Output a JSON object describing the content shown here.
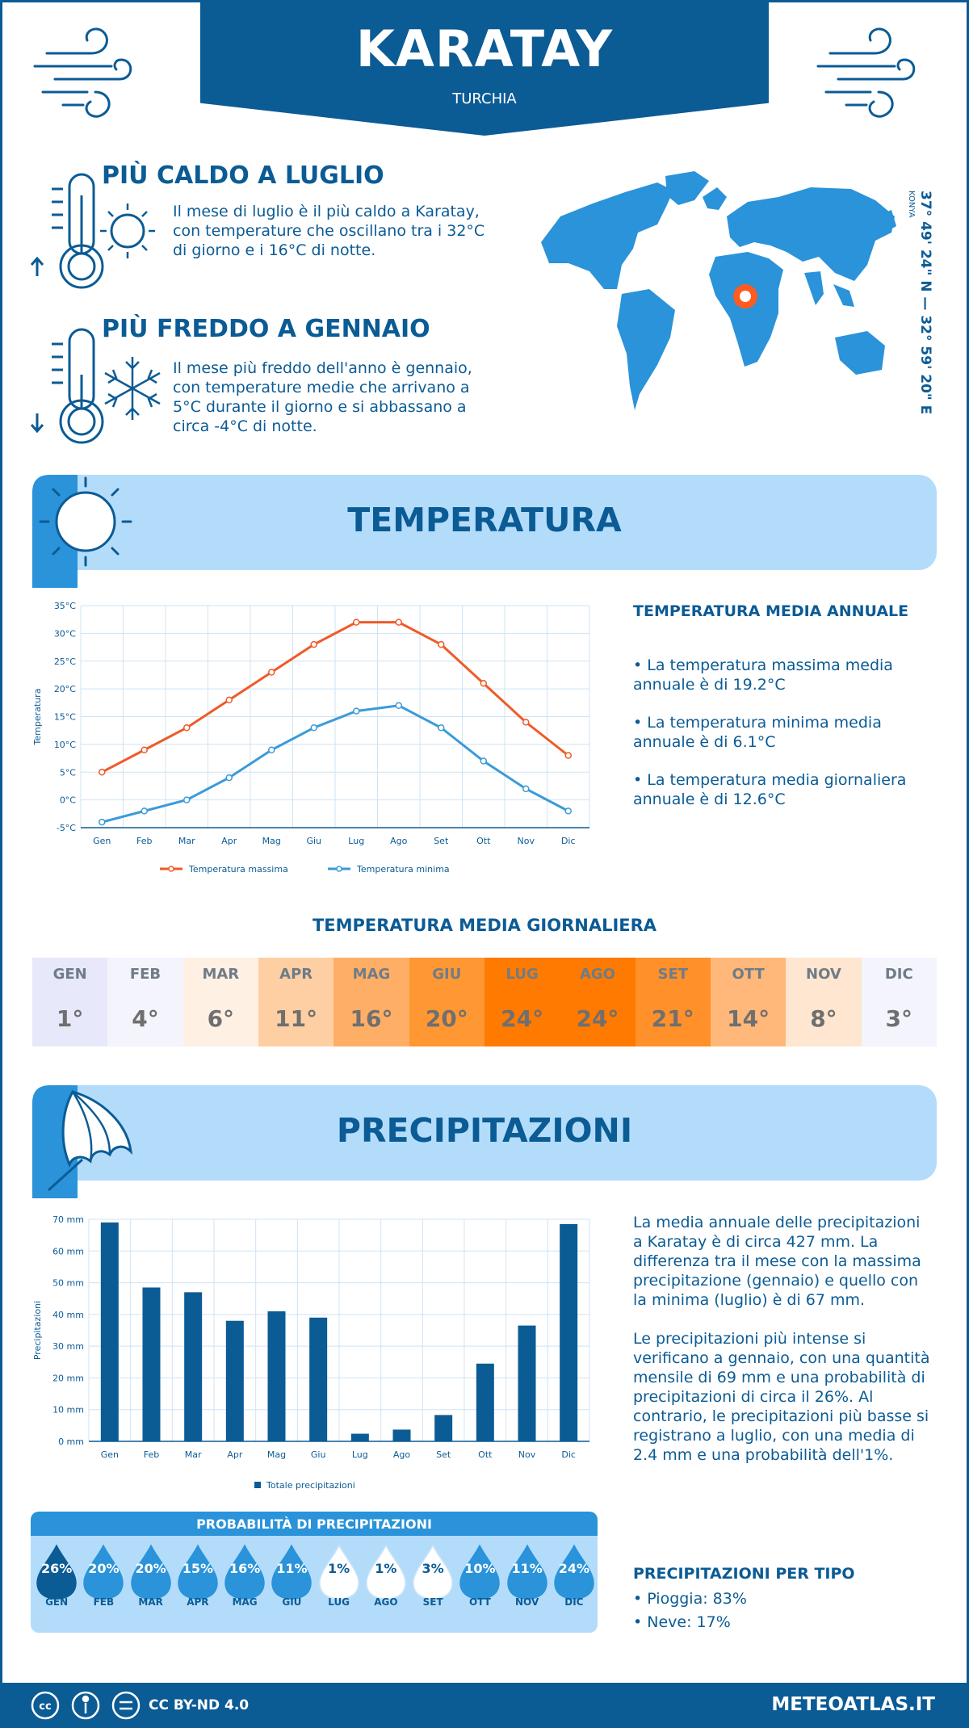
{
  "header": {
    "city": "KARATAY",
    "country": "TURCHIA"
  },
  "hot": {
    "title": "PIÙ CALDO A LUGLIO",
    "text": "Il mese di luglio è il più caldo a Karatay, con temperature che oscillano tra i 32°C di giorno e i 16°C di notte."
  },
  "cold": {
    "title": "PIÙ FREDDO A GENNAIO",
    "text": "Il mese più freddo dell'anno è gennaio, con temperature medie che arrivano a 5°C durante il giorno e si abbassano a circa -4°C di notte."
  },
  "coords": {
    "text": "37° 49' 24\" N — 32° 59' 20\" E",
    "region": "KONYA"
  },
  "temp_section": {
    "title": "TEMPERATURA",
    "annual_title": "TEMPERATURA MEDIA ANNUALE",
    "bullets": [
      "• La temperatura massima media annuale è di 19.2°C",
      "• La temperatura minima media annuale è di 6.1°C",
      "• La temperatura media giornaliera annuale è di 12.6°C"
    ],
    "daily_title": "TEMPERATURA MEDIA GIORNALIERA"
  },
  "daily": [
    {
      "m": "GEN",
      "v": "1°",
      "bg": "#e8e8fb"
    },
    {
      "m": "FEB",
      "v": "4°",
      "bg": "#f4f4fd"
    },
    {
      "m": "MAR",
      "v": "6°",
      "bg": "#fff0e4"
    },
    {
      "m": "APR",
      "v": "11°",
      "bg": "#ffcfa4"
    },
    {
      "m": "MAG",
      "v": "16°",
      "bg": "#ffae66"
    },
    {
      "m": "GIU",
      "v": "20°",
      "bg": "#ff9733"
    },
    {
      "m": "LUG",
      "v": "24°",
      "bg": "#ff7a00"
    },
    {
      "m": "AGO",
      "v": "24°",
      "bg": "#ff7a00"
    },
    {
      "m": "SET",
      "v": "21°",
      "bg": "#ff902a"
    },
    {
      "m": "OTT",
      "v": "14°",
      "bg": "#ffb87a"
    },
    {
      "m": "NOV",
      "v": "8°",
      "bg": "#ffe6d0"
    },
    {
      "m": "DIC",
      "v": "3°",
      "bg": "#f4f4fd"
    }
  ],
  "precip_section": {
    "title": "PRECIPITAZIONI",
    "text1": "La media annuale delle precipitazioni a Karatay è di circa 427 mm. La differenza tra il mese con la massima precipitazione (gennaio) e quello con la minima (luglio) è di 67 mm.",
    "text2": "Le precipitazioni più intense si verificano a gennaio, con una quantità mensile di 69 mm e una probabilità di precipitazioni di circa il 26%. Al contrario, le precipitazioni più basse si registrano a luglio, con una media di 2.4 mm e una probabilità dell'1%.",
    "prob_title": "PROBABILITÀ DI PRECIPITAZIONI",
    "type_title": "PRECIPITAZIONI PER TIPO",
    "types": [
      "• Pioggia: 83%",
      "• Neve: 17%"
    ]
  },
  "probability": [
    {
      "m": "GEN",
      "v": "26%",
      "color": "#0b5b95",
      "tc": "#ffffff"
    },
    {
      "m": "FEB",
      "v": "20%",
      "color": "#2a93d9",
      "tc": "#ffffff"
    },
    {
      "m": "MAR",
      "v": "20%",
      "color": "#2a93d9",
      "tc": "#ffffff"
    },
    {
      "m": "APR",
      "v": "15%",
      "color": "#2a93d9",
      "tc": "#ffffff"
    },
    {
      "m": "MAG",
      "v": "16%",
      "color": "#2a93d9",
      "tc": "#ffffff"
    },
    {
      "m": "GIU",
      "v": "11%",
      "color": "#2a93d9",
      "tc": "#ffffff"
    },
    {
      "m": "LUG",
      "v": "1%",
      "color": "#ffffff",
      "tc": "#0b5b95"
    },
    {
      "m": "AGO",
      "v": "1%",
      "color": "#ffffff",
      "tc": "#0b5b95"
    },
    {
      "m": "SET",
      "v": "3%",
      "color": "#ffffff",
      "tc": "#0b5b95"
    },
    {
      "m": "OTT",
      "v": "10%",
      "color": "#2a93d9",
      "tc": "#ffffff"
    },
    {
      "m": "NOV",
      "v": "11%",
      "color": "#2a93d9",
      "tc": "#ffffff"
    },
    {
      "m": "DIC",
      "v": "24%",
      "color": "#2a93d9",
      "tc": "#ffffff"
    }
  ],
  "footer": {
    "license": "CC BY-ND 4.0",
    "site": "METEOATLAS.IT"
  },
  "chart_data": [
    {
      "type": "line",
      "categories": [
        "Gen",
        "Feb",
        "Mar",
        "Apr",
        "Mag",
        "Giu",
        "Lug",
        "Ago",
        "Set",
        "Ott",
        "Nov",
        "Dic"
      ],
      "ylabel": "Temperatura",
      "ylim": [
        -5,
        35
      ],
      "yticks": [
        "-5°C",
        "0°C",
        "5°C",
        "10°C",
        "15°C",
        "20°C",
        "25°C",
        "30°C",
        "35°C"
      ],
      "grid": true,
      "legend": "bottom",
      "series": [
        {
          "name": "Temperatura massima",
          "color": "#f05a28",
          "values": [
            5,
            9,
            13,
            18,
            23,
            28,
            32,
            32,
            28,
            21,
            14,
            8
          ]
        },
        {
          "name": "Temperatura minima",
          "color": "#3a9ad9",
          "values": [
            -4,
            -2,
            0,
            4,
            9,
            13,
            16,
            17,
            13,
            7,
            2,
            -2
          ]
        }
      ]
    },
    {
      "type": "bar",
      "categories": [
        "Gen",
        "Feb",
        "Mar",
        "Apr",
        "Mag",
        "Giu",
        "Lug",
        "Ago",
        "Set",
        "Ott",
        "Nov",
        "Dic"
      ],
      "ylabel": "Precipitazioni",
      "ylim": [
        0,
        70
      ],
      "yticks": [
        "0 mm",
        "10 mm",
        "20 mm",
        "30 mm",
        "40 mm",
        "50 mm",
        "60 mm",
        "70 mm"
      ],
      "grid": true,
      "legend": "bottom",
      "series": [
        {
          "name": "Totale precipitazioni",
          "color": "#0b5b95",
          "values": [
            69,
            48.5,
            47,
            38,
            41,
            39,
            2.4,
            3.7,
            8.3,
            24.5,
            36.5,
            68.5
          ]
        }
      ]
    }
  ]
}
